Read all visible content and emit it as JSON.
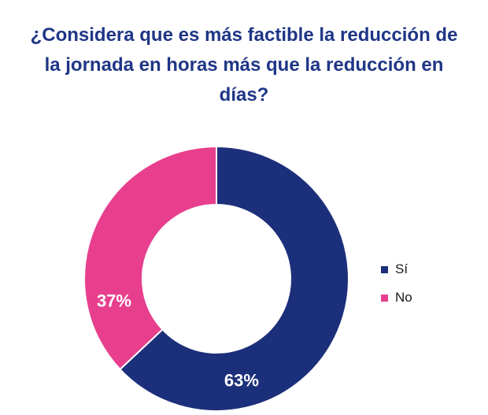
{
  "chart_data": {
    "type": "pie",
    "variant": "donut",
    "title": "¿Considera que es más factible la reducción de la jornada en horas más que la reducción en días?",
    "title_lines": [
      "¿Considera que es más factible la reducción de",
      "la jornada en horas más que la reducción en",
      "días?"
    ],
    "categories": [
      "Sí",
      "No"
    ],
    "values": [
      63,
      37
    ],
    "data_labels": [
      "63%",
      "37%"
    ],
    "colors": [
      "#1c2f7a",
      "#e73f8e"
    ],
    "legend_position": "right"
  },
  "colors": {
    "title": "#1f3686",
    "label_text": "#ffffff",
    "legend_text": "#1a1a1a"
  }
}
